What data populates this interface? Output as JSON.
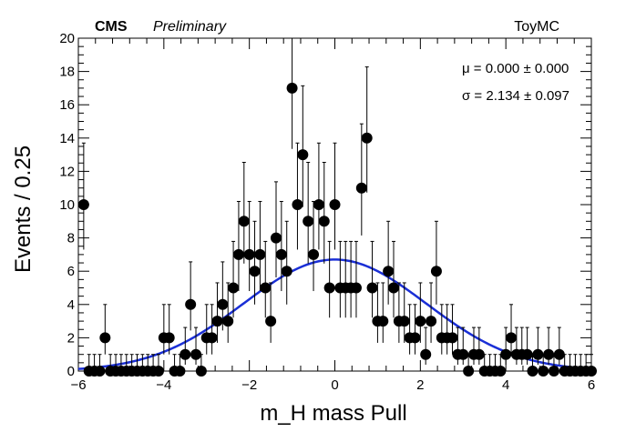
{
  "chart_data": {
    "type": "scatter",
    "title": "",
    "header_left_bold": "CMS",
    "header_left_italic": "Preliminary",
    "header_right": "ToyMC",
    "xlabel": "m_H mass Pull",
    "ylabel": "Events / 0.25",
    "xlim": [
      -6,
      6
    ],
    "ylim": [
      0,
      20
    ],
    "x_ticks": [
      -6,
      -4,
      -2,
      0,
      2,
      4,
      6
    ],
    "y_ticks": [
      0,
      2,
      4,
      6,
      8,
      10,
      12,
      14,
      16,
      18,
      20
    ],
    "annotations": {
      "mu": "μ = 0.000 ± 0.000",
      "sigma": "σ = 2.134 ± 0.097"
    },
    "series": [
      {
        "type": "points_with_errors",
        "x": [
          -5.875,
          -5.625,
          -5.375,
          -5.125,
          -4.875,
          -4.625,
          -4.375,
          -4.125,
          -3.875,
          -3.625,
          -3.375,
          -3.125,
          -2.875,
          -2.625,
          -2.375,
          -2.125,
          -1.875,
          -1.625,
          -1.375,
          -1.125,
          -0.875,
          -0.625,
          -0.375,
          -0.125,
          0.125,
          0.375,
          0.625,
          0.875,
          1.125,
          1.375,
          1.625,
          1.875,
          2.125,
          2.375,
          2.625,
          2.875,
          3.125,
          3.375,
          3.625,
          3.875,
          4.125,
          4.375,
          4.625,
          4.875,
          5.125,
          5.375,
          5.625,
          5.875
        ],
        "y": [
          10,
          0,
          2,
          0,
          0,
          0,
          0,
          0,
          2,
          0,
          4,
          0,
          2,
          4,
          5,
          9,
          6,
          5,
          8,
          6,
          10,
          9,
          10,
          5,
          5,
          5,
          11,
          5,
          3,
          5,
          3,
          2,
          1,
          6,
          2,
          1,
          0,
          1,
          0,
          0,
          2,
          1,
          0,
          0,
          0,
          0,
          0,
          0
        ]
      },
      {
        "type": "points_with_errors",
        "x": [
          -5.75,
          -5.5,
          -5.25,
          -5.0,
          -4.75,
          -4.5,
          -4.25,
          -4.0,
          -3.75,
          -3.5,
          -3.25,
          -3.0,
          -2.75,
          -2.5,
          -2.25,
          -2.0,
          -1.75,
          -1.5,
          -1.25,
          -1.0,
          -0.75,
          -0.5,
          -0.25,
          0.0,
          0.25,
          0.5,
          0.75,
          1.0,
          1.25,
          1.5,
          1.75,
          2.0,
          2.25,
          2.5,
          2.75,
          3.0,
          3.25,
          3.5,
          3.75,
          4.0,
          4.25,
          4.5,
          4.75,
          5.0,
          5.25,
          5.5,
          5.75,
          6.0
        ],
        "y": [
          0,
          0,
          0,
          0,
          0,
          0,
          0,
          2,
          0,
          1,
          1,
          2,
          3,
          3,
          7,
          7,
          7,
          3,
          7,
          17,
          13,
          7,
          9,
          10,
          5,
          5,
          14,
          3,
          6,
          3,
          2,
          3,
          3,
          2,
          2,
          1,
          1,
          0,
          0,
          1,
          1,
          1,
          1,
          1,
          1,
          0,
          0,
          0
        ]
      },
      {
        "type": "gaussian_fit",
        "name": "",
        "color": "#1a2fd6",
        "mean": 0.0,
        "sigma": 2.134,
        "peak": 6.7,
        "baseline": 0.0
      }
    ],
    "marker_color": "#000000",
    "grid": false,
    "legend": "none"
  }
}
